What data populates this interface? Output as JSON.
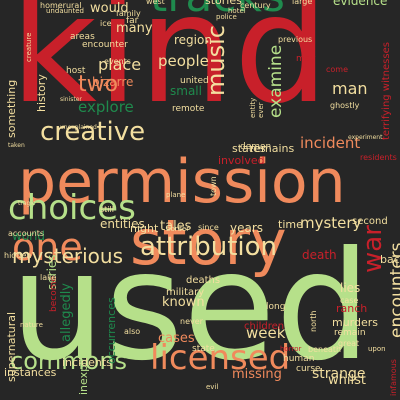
{
  "words": [
    {
      "text": "kind",
      "color": "#c8202a",
      "rotated": false
    },
    {
      "text": "used",
      "color": "#b6e08a",
      "rotated": false
    },
    {
      "text": "permission",
      "color": "#f08a5c",
      "rotated": false
    },
    {
      "text": "story",
      "color": "#f08a5c",
      "rotated": false
    },
    {
      "text": "tracks",
      "color": "#1f8a4d",
      "rotated": false
    },
    {
      "text": "one",
      "color": "#f08a5c",
      "rotated": false
    },
    {
      "text": "choices",
      "color": "#b6e08a",
      "rotated": false
    },
    {
      "text": "attribution",
      "color": "#f3dfa0",
      "rotated": false
    },
    {
      "text": "licensed",
      "color": "#f08a5c",
      "rotated": false
    },
    {
      "text": "creative",
      "color": "#f3dfa0",
      "rotated": false
    },
    {
      "text": "commons",
      "color": "#b6e08a",
      "rotated": false
    },
    {
      "text": "mysterious",
      "color": "#f3dfa0",
      "rotated": false
    },
    {
      "text": "music",
      "color": "#f3dfa0",
      "rotated": true
    },
    {
      "text": "two",
      "color": "#f08a5c",
      "rotated": false
    },
    {
      "text": "war",
      "color": "#c8202a",
      "rotated": true
    },
    {
      "text": "encounters",
      "color": "#f3dfa0",
      "rotated": true
    },
    {
      "text": "mystery",
      "color": "#f3dfa0",
      "rotated": false
    },
    {
      "text": "incident",
      "color": "#f08a5c",
      "rotated": false
    },
    {
      "text": "explore",
      "color": "#1f8a4d",
      "rotated": false
    },
    {
      "text": "examine",
      "color": "#b6e08a",
      "rotated": true
    },
    {
      "text": "man",
      "color": "#f3dfa0",
      "rotated": false
    },
    {
      "text": "place",
      "color": "#f3dfa0",
      "rotated": false
    },
    {
      "text": "people",
      "color": "#f3dfa0",
      "rotated": false
    },
    {
      "text": "tales",
      "color": "#f3dfa0",
      "rotated": false
    },
    {
      "text": "week",
      "color": "#f3dfa0",
      "rotated": false
    },
    {
      "text": "strange",
      "color": "#f3dfa0",
      "rotated": false
    },
    {
      "text": "known",
      "color": "#f3dfa0",
      "rotated": false
    },
    {
      "text": "entities",
      "color": "#f3dfa0",
      "rotated": false
    },
    {
      "text": "many",
      "color": "#f3dfa0",
      "rotated": false
    },
    {
      "text": "would",
      "color": "#f3dfa0",
      "rotated": false
    },
    {
      "text": "evidence",
      "color": "#b6e08a",
      "rotated": false
    },
    {
      "text": "stories",
      "color": "#f3dfa0",
      "rotated": false
    },
    {
      "text": "region",
      "color": "#f3dfa0",
      "rotated": false
    },
    {
      "text": "bizarre",
      "color": "#f08a5c",
      "rotated": false
    },
    {
      "text": "small",
      "color": "#1f8a4d",
      "rotated": false
    },
    {
      "text": "years",
      "color": "#f3dfa0",
      "rotated": false
    },
    {
      "text": "time",
      "color": "#f3dfa0",
      "rotated": false
    },
    {
      "text": "night",
      "color": "#f3dfa0",
      "rotated": false
    },
    {
      "text": "lies",
      "color": "#f3dfa0",
      "rotated": false
    },
    {
      "text": "cases",
      "color": "#f08a5c",
      "rotated": false
    },
    {
      "text": "whilst",
      "color": "#f3dfa0",
      "rotated": false
    },
    {
      "text": "missing",
      "color": "#f08a5c",
      "rotated": false
    },
    {
      "text": "allegedly",
      "color": "#1f8a4d",
      "rotated": true
    },
    {
      "text": "death",
      "color": "#c8202a",
      "rotated": false
    },
    {
      "text": "world",
      "color": "#1f8a4d",
      "rotated": false
    },
    {
      "text": "series",
      "color": "#b6e08a",
      "rotated": true
    },
    {
      "text": "supernatural",
      "color": "#f3dfa0",
      "rotated": true
    },
    {
      "text": "inexplicable",
      "color": "#b6e08a",
      "rotated": true
    },
    {
      "text": "instances",
      "color": "#f3dfa0",
      "rotated": false
    },
    {
      "text": "incidents",
      "color": "#f3dfa0",
      "rotated": false
    },
    {
      "text": "involved",
      "color": "#c8202a",
      "rotated": false
    },
    {
      "text": "states",
      "color": "#f3dfa0",
      "rotated": false
    },
    {
      "text": "remains",
      "color": "#f3dfa0",
      "rotated": false
    },
    {
      "text": "second",
      "color": "#f3dfa0",
      "rotated": false
    },
    {
      "text": "back",
      "color": "#f3dfa0",
      "rotated": false
    },
    {
      "text": "murders",
      "color": "#f3dfa0",
      "rotated": false
    },
    {
      "text": "ranch",
      "color": "#c8202a",
      "rotated": false
    },
    {
      "text": "military",
      "color": "#f3dfa0",
      "rotated": false
    },
    {
      "text": "deaths",
      "color": "#f3dfa0",
      "rotated": false
    },
    {
      "text": "something",
      "color": "#f3dfa0",
      "rotated": true
    },
    {
      "text": "history",
      "color": "#f3dfa0",
      "rotated": true
    },
    {
      "text": "host",
      "color": "#f3dfa0",
      "rotated": false
    },
    {
      "text": "far",
      "color": "#f3dfa0",
      "rotated": false
    },
    {
      "text": "terrifying witnesses",
      "color": "#c8202a",
      "rotated": true
    },
    {
      "text": "remote",
      "color": "#f3dfa0",
      "rotated": false
    },
    {
      "text": "encounter",
      "color": "#f3dfa0",
      "rotated": false
    },
    {
      "text": "occurrences",
      "color": "#1f8a4d",
      "rotated": true
    },
    {
      "text": "long",
      "color": "#f3dfa0",
      "rotated": false
    },
    {
      "text": "children",
      "color": "#c8202a",
      "rotated": false
    },
    {
      "text": "state",
      "color": "#f3dfa0",
      "rotated": false
    },
    {
      "text": "human",
      "color": "#f3dfa0",
      "rotated": false
    },
    {
      "text": "curse",
      "color": "#f3dfa0",
      "rotated": false
    },
    {
      "text": "case",
      "color": "#f3dfa0",
      "rotated": false
    },
    {
      "text": "remain",
      "color": "#f3dfa0",
      "rotated": false
    },
    {
      "text": "great",
      "color": "#f3dfa0",
      "rotated": false
    },
    {
      "text": "demon",
      "color": "#f3dfa0",
      "rotated": false
    },
    {
      "text": "united",
      "color": "#f3dfa0",
      "rotated": false
    },
    {
      "text": "come",
      "color": "#c8202a",
      "rotated": false
    },
    {
      "text": "ghostly",
      "color": "#f3dfa0",
      "rotated": false
    },
    {
      "text": "areas",
      "color": "#f3dfa0",
      "rotated": false
    },
    {
      "text": "homerural",
      "color": "#f3dfa0",
      "rotated": false
    },
    {
      "text": "large",
      "color": "#f3dfa0",
      "rotated": false
    },
    {
      "text": "century",
      "color": "#f3dfa0",
      "rotated": false
    },
    {
      "text": "previous",
      "color": "#f3dfa0",
      "rotated": false
    },
    {
      "text": "still",
      "color": "#f3dfa0",
      "rotated": false
    },
    {
      "text": "since",
      "color": "#f3dfa0",
      "rotated": false
    },
    {
      "text": "never",
      "color": "#f3dfa0",
      "rotated": false
    },
    {
      "text": "become",
      "color": "#c8202a",
      "rotated": true
    },
    {
      "text": "hidden",
      "color": "#f3dfa0",
      "rotated": false
    },
    {
      "text": "accounts",
      "color": "#f3dfa0",
      "rotated": false
    },
    {
      "text": "lake",
      "color": "#f3dfa0",
      "rotated": false
    },
    {
      "text": "town",
      "color": "#f3dfa0",
      "rotated": true
    },
    {
      "text": "north",
      "color": "#f3dfa0",
      "rotated": true
    },
    {
      "text": "also",
      "color": "#f3dfa0",
      "rotated": false
    },
    {
      "text": "events",
      "color": "#f3dfa0",
      "rotated": false
    },
    {
      "text": "family",
      "color": "#f3dfa0",
      "rotated": false
    },
    {
      "text": "west",
      "color": "#f3dfa0",
      "rotated": false
    },
    {
      "text": "park",
      "color": "#c8202a",
      "rotated": true
    },
    {
      "text": "ice",
      "color": "#f3dfa0",
      "rotated": false
    },
    {
      "text": "may",
      "color": "#c8202a",
      "rotated": false
    },
    {
      "text": "residents",
      "color": "#c8202a",
      "rotated": false
    },
    {
      "text": "border",
      "color": "#f3dfa0",
      "rotated": false
    },
    {
      "text": "sinister",
      "color": "#f3dfa0",
      "rotated": false
    },
    {
      "text": "taken",
      "color": "#f3dfa0",
      "rotated": false
    },
    {
      "text": "unexplained",
      "color": "#f3dfa0",
      "rotated": false
    },
    {
      "text": "tragic",
      "color": "#f3dfa0",
      "rotated": false
    },
    {
      "text": "upon",
      "color": "#f3dfa0",
      "rotated": false
    },
    {
      "text": "beneath",
      "color": "#f3dfa0",
      "rotated": false
    },
    {
      "text": "horror",
      "color": "#c8202a",
      "rotated": false
    },
    {
      "text": "infamous",
      "color": "#c8202a",
      "rotated": true
    },
    {
      "text": "evil",
      "color": "#f3dfa0",
      "rotated": false
    },
    {
      "text": "nature",
      "color": "#f3dfa0",
      "rotated": false
    },
    {
      "text": "police",
      "color": "#f3dfa0",
      "rotated": false
    },
    {
      "text": "ever",
      "color": "#f3dfa0",
      "rotated": true
    },
    {
      "text": "hotel",
      "color": "#f3dfa0",
      "rotated": false
    },
    {
      "text": "undaunted",
      "color": "#f3dfa0",
      "rotated": false
    },
    {
      "text": "plane",
      "color": "#f3dfa0",
      "rotated": false
    },
    {
      "text": "experiment",
      "color": "#f3dfa0",
      "rotated": false
    },
    {
      "text": "entity",
      "color": "#f3dfa0",
      "rotated": true
    },
    {
      "text": "creature",
      "color": "#f3dfa0",
      "rotated": true
    }
  ]
}
